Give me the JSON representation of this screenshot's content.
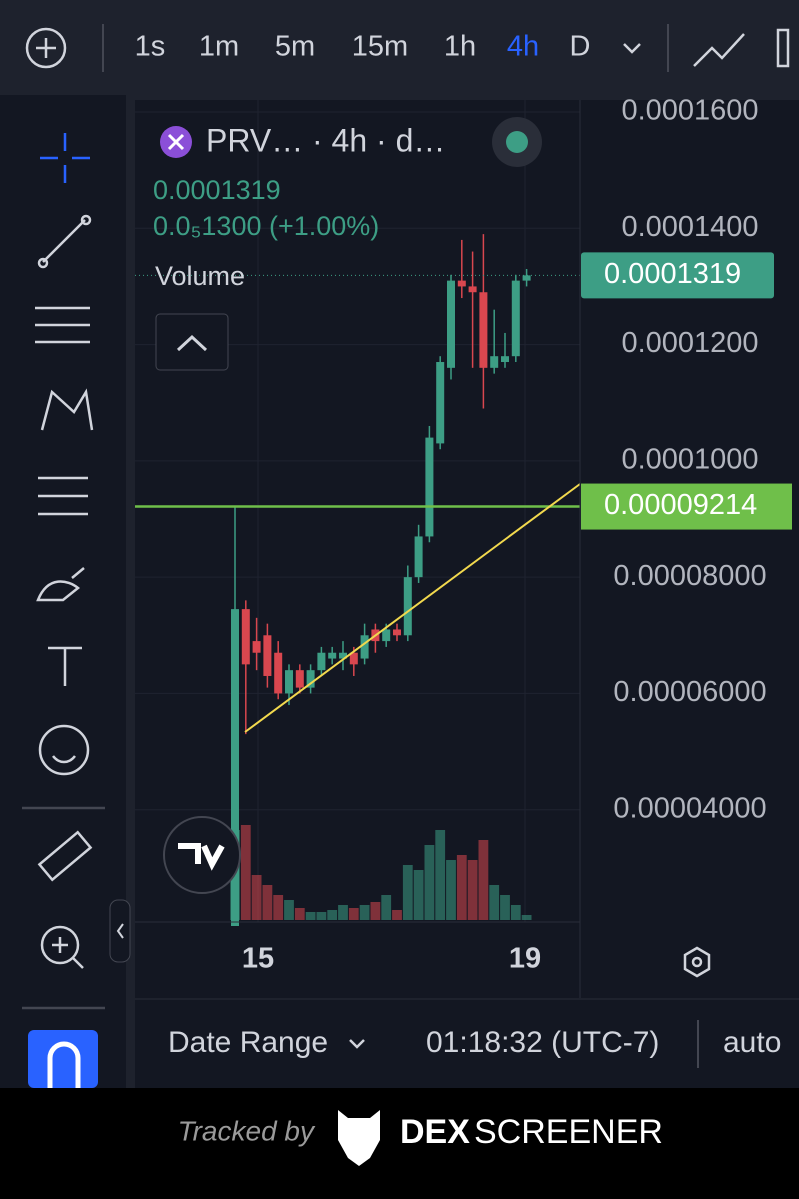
{
  "toolbar": {
    "timeframes": [
      "1s",
      "1m",
      "5m",
      "15m",
      "1h",
      "4h",
      "D"
    ],
    "active": "4h"
  },
  "legend": {
    "symbol": "PRV…",
    "interval": "· 4h · d…",
    "price": "0.0001319",
    "change": "0.0₅1300 (+1.00%)",
    "volume": "Volume"
  },
  "chart_data": {
    "type": "candlestick",
    "open": [
      2e-05,
      7.45e-05,
      6.9e-05,
      7e-05,
      6.7e-05,
      6e-05,
      6.4e-05,
      6.1e-05,
      6.4e-05,
      6.6e-05,
      6.6e-05,
      6.7e-05,
      6.6e-05,
      7.1e-05,
      6.9e-05,
      7.1e-05,
      7e-05,
      8e-05,
      8.7e-05,
      0.000103,
      0.000116,
      0.000131,
      0.00013,
      0.000129,
      0.000116,
      0.000117,
      0.000118,
      0.000131
    ],
    "high": [
      9.2e-05,
      7.6e-05,
      7.3e-05,
      7.2e-05,
      6.9e-05,
      6.5e-05,
      6.5e-05,
      6.5e-05,
      6.8e-05,
      6.8e-05,
      6.9e-05,
      6.8e-05,
      7.2e-05,
      7.2e-05,
      7.2e-05,
      7.2e-05,
      8.2e-05,
      8.9e-05,
      0.000106,
      0.000118,
      0.000132,
      0.000138,
      0.000136,
      0.000139,
      0.000126,
      0.000122,
      0.000132,
      0.000133
    ],
    "low": [
      2e-05,
      5.3e-05,
      6.4e-05,
      6.1e-05,
      5.9e-05,
      5.8e-05,
      6e-05,
      6e-05,
      6.3e-05,
      6.5e-05,
      6.4e-05,
      6.3e-05,
      6.5e-05,
      6.7e-05,
      6.8e-05,
      6.9e-05,
      6.9e-05,
      7.9e-05,
      8.6e-05,
      0.000102,
      0.000114,
      0.000128,
      0.000116,
      0.000109,
      0.000115,
      0.000116,
      0.000117,
      0.00013
    ],
    "close": [
      7.45e-05,
      6.5e-05,
      6.7e-05,
      6.3e-05,
      6e-05,
      6.4e-05,
      6.1e-05,
      6.4e-05,
      6.7e-05,
      6.7e-05,
      6.7e-05,
      6.5e-05,
      7e-05,
      6.9e-05,
      7.1e-05,
      7e-05,
      8e-05,
      8.7e-05,
      0.000104,
      0.000117,
      0.000131,
      0.00013,
      0.000129,
      0.000116,
      0.000118,
      0.000118,
      0.000131,
      0.0001319
    ],
    "volumes": [
      90,
      95,
      45,
      35,
      25,
      20,
      12,
      8,
      8,
      10,
      15,
      12,
      15,
      18,
      25,
      10,
      55,
      50,
      75,
      90,
      60,
      65,
      60,
      80,
      35,
      25,
      15,
      5
    ],
    "up_color": "#3d9e85",
    "down_color": "#d9474f",
    "ylim": [
      2e-05,
      0.00016
    ],
    "yticks": [
      {
        "value": 0.00016,
        "label": "0.0001600"
      },
      {
        "value": 0.00014,
        "label": "0.0001400"
      },
      {
        "value": 0.00012,
        "label": "0.0001200"
      },
      {
        "value": 0.0001,
        "label": "0.0001000"
      },
      {
        "value": 8e-05,
        "label": "0.00008000"
      },
      {
        "value": 6e-05,
        "label": "0.00006000"
      },
      {
        "value": 4e-05,
        "label": "0.00004000"
      }
    ],
    "xticks": [
      "15",
      "19"
    ],
    "last_price": {
      "value": 0.0001319,
      "label": "0.0001319"
    },
    "hline": {
      "value": 9.214e-05,
      "label": "0.00009214",
      "color": "#6fbf4a"
    }
  },
  "bottom": {
    "range": "Date Range",
    "time": "01:18:32 (UTC-7)",
    "mode": "auto"
  },
  "footer": {
    "tracked": "Tracked by",
    "brand1": "DEX",
    "brand2": "SCREENER"
  }
}
